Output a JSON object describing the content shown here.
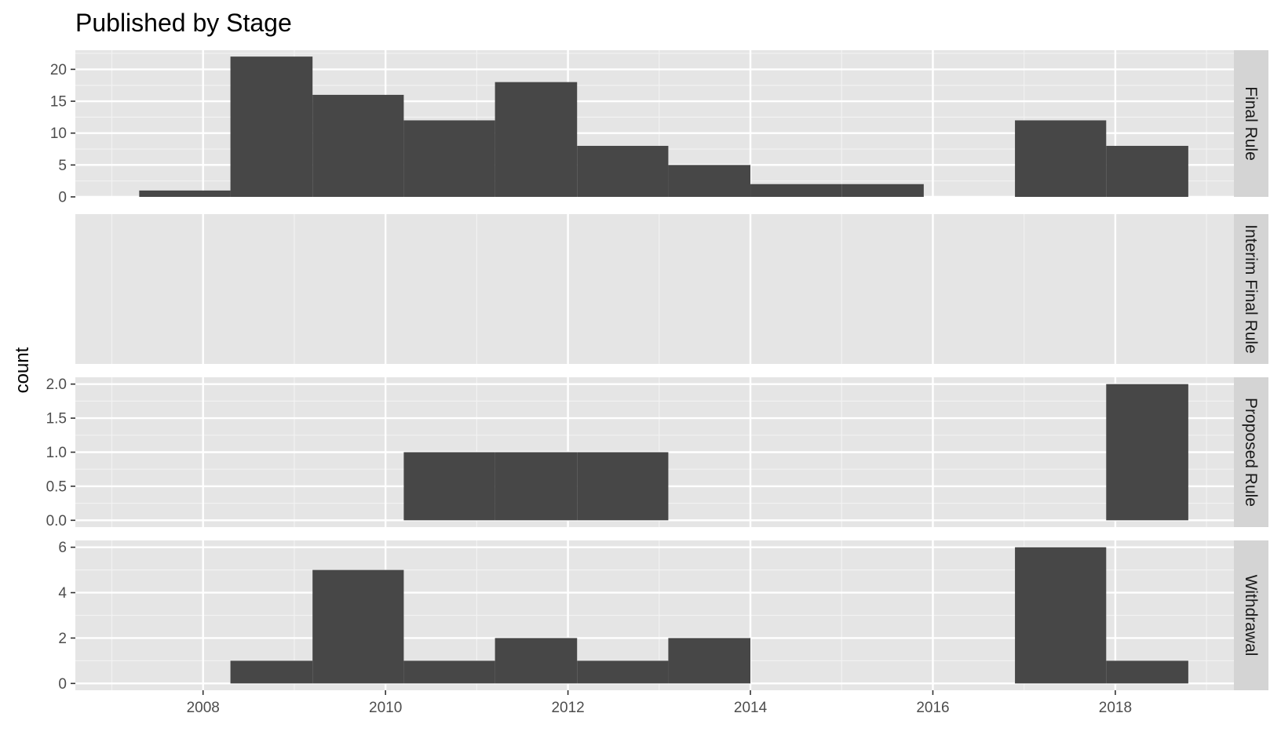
{
  "chart_data": {
    "type": "bar",
    "title": "Published by Stage",
    "xlabel": "",
    "ylabel": "count",
    "x_ticks": [
      2008,
      2010,
      2012,
      2014,
      2016,
      2018
    ],
    "xlim": [
      2006.6,
      2019.3
    ],
    "bin_width": 1.92,
    "grid": true,
    "facets": [
      {
        "name": "Final Rule",
        "ylim": [
          0,
          23
        ],
        "y_ticks": [
          "0",
          "5",
          "10",
          "15",
          "20"
        ],
        "y_tick_values": [
          0,
          5,
          10,
          15,
          20
        ],
        "bins": [
          {
            "x0": 2007.3,
            "x1": 2008.3,
            "count": 1
          },
          {
            "x0": 2008.3,
            "x1": 2009.2,
            "count": 22
          },
          {
            "x0": 2009.2,
            "x1": 2010.2,
            "count": 16
          },
          {
            "x0": 2010.2,
            "x1": 2011.2,
            "count": 12
          },
          {
            "x0": 2011.2,
            "x1": 2012.1,
            "count": 18
          },
          {
            "x0": 2012.1,
            "x1": 2013.1,
            "count": 8
          },
          {
            "x0": 2013.1,
            "x1": 2014.0,
            "count": 5
          },
          {
            "x0": 2014.0,
            "x1": 2015.0,
            "count": 2
          },
          {
            "x0": 2015.0,
            "x1": 2015.9,
            "count": 2
          },
          {
            "x0": 2016.9,
            "x1": 2017.9,
            "count": 12
          },
          {
            "x0": 2017.9,
            "x1": 2018.8,
            "count": 8
          }
        ]
      },
      {
        "name": "Interim Final Rule",
        "ylim": [
          0,
          23
        ],
        "y_ticks": [],
        "y_tick_values": [],
        "bins": []
      },
      {
        "name": "Proposed Rule",
        "ylim": [
          -0.1,
          2.1
        ],
        "y_ticks": [
          "0.0",
          "0.5",
          "1.0",
          "1.5",
          "2.0"
        ],
        "y_tick_values": [
          0,
          0.5,
          1,
          1.5,
          2
        ],
        "bins": [
          {
            "x0": 2010.2,
            "x1": 2011.2,
            "count": 1
          },
          {
            "x0": 2011.2,
            "x1": 2012.1,
            "count": 1
          },
          {
            "x0": 2012.1,
            "x1": 2013.1,
            "count": 1
          },
          {
            "x0": 2017.9,
            "x1": 2018.8,
            "count": 2
          }
        ]
      },
      {
        "name": "Withdrawal",
        "ylim": [
          -0.3,
          6.3
        ],
        "y_ticks": [
          "0",
          "2",
          "4",
          "6"
        ],
        "y_tick_values": [
          0,
          2,
          4,
          6
        ],
        "bins": [
          {
            "x0": 2008.3,
            "x1": 2009.2,
            "count": 1
          },
          {
            "x0": 2009.2,
            "x1": 2010.2,
            "count": 5
          },
          {
            "x0": 2010.2,
            "x1": 2011.2,
            "count": 1
          },
          {
            "x0": 2011.2,
            "x1": 2012.1,
            "count": 2
          },
          {
            "x0": 2012.1,
            "x1": 2013.1,
            "count": 1
          },
          {
            "x0": 2013.1,
            "x1": 2014.0,
            "count": 2
          },
          {
            "x0": 2016.9,
            "x1": 2017.9,
            "count": 6
          },
          {
            "x0": 2017.9,
            "x1": 2018.8,
            "count": 1
          }
        ]
      }
    ],
    "colors": {
      "bar": "#474747",
      "panel_bg": "#e5e5e5",
      "grid_major": "#ffffff",
      "grid_minor": "#f2f2f2",
      "strip_bg": "#d4d4d4",
      "tick": "#333333"
    }
  }
}
